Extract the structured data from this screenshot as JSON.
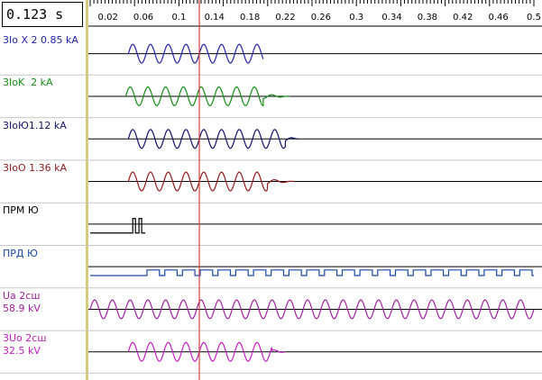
{
  "time_readout": "0.123 s",
  "colors": {
    "divider": "#d4cc7a",
    "cursor": "#d04040",
    "channel_separator": "#c8c8c8",
    "baseline": "#000000"
  },
  "chart_data": {
    "type": "line",
    "title": "",
    "xlabel": "",
    "ylabel": "",
    "xlim": [
      0.0,
      0.5
    ],
    "x_ticks": [
      "0.02",
      "0.06",
      "0.1",
      "0.14",
      "0.18",
      "0.22",
      "0.26",
      "0.3",
      "0.34",
      "0.38",
      "0.42",
      "0.46",
      "0.5"
    ],
    "x_tick_values": [
      0.02,
      0.06,
      0.1,
      0.14,
      0.18,
      0.22,
      0.26,
      0.3,
      0.34,
      0.38,
      0.42,
      0.46,
      0.5
    ],
    "cursor_time": 0.123,
    "grid": false,
    "series": [
      {
        "label_lines": [
          "3Io X 2 0.85 kA"
        ],
        "color": "#2323a8",
        "kind": "sine",
        "t_start": 0.043,
        "t_end": 0.195,
        "amplitude": 0.85,
        "scale_max": 0.85,
        "freq": 50,
        "tail": 0.0,
        "offset": 0
      },
      {
        "label_lines": [
          "3IoK  2 kA"
        ],
        "color": "#148c14",
        "kind": "sine",
        "t_start": 0.04,
        "t_end": 0.195,
        "amplitude": 2.0,
        "scale_max": 2.0,
        "freq": 50,
        "tail": 0.03,
        "offset": 0
      },
      {
        "label_lines": [
          "3IoЮ1.12 kA"
        ],
        "color": "#10106a",
        "kind": "sine",
        "t_start": 0.043,
        "t_end": 0.22,
        "amplitude": 1.12,
        "scale_max": 1.12,
        "freq": 50,
        "tail": 0.015,
        "offset": 0
      },
      {
        "label_lines": [
          "3IoO 1.36 kA"
        ],
        "color": "#901a1a",
        "kind": "sine",
        "t_start": 0.043,
        "t_end": 0.2,
        "amplitude": 1.36,
        "scale_max": 1.36,
        "freq": 50,
        "tail": 0.03,
        "offset": 0
      },
      {
        "label_lines": [
          "ПРМ Ю"
        ],
        "color": "#000000",
        "kind": "digital",
        "t_start": 0.0,
        "t_end": 0.062,
        "pulses": [
          [
            0.048,
            0.051
          ],
          [
            0.055,
            0.058
          ]
        ],
        "offset": 0
      },
      {
        "label_lines": [
          "ПРД Ю"
        ],
        "color": "#1848a8",
        "kind": "square",
        "t_start": 0.0,
        "t_end": 0.5,
        "period": 0.02,
        "on_start": 0.064,
        "duty": 0.7,
        "offset": 0
      },
      {
        "label_lines": [
          "Ua 2сш",
          "58.9 kV"
        ],
        "color": "#a020a0",
        "kind": "sine",
        "t_start": 0.0,
        "t_end": 0.5,
        "amplitude": 58.9,
        "scale_max": 58.9,
        "freq": 50,
        "tail": 0.0,
        "offset": 0
      },
      {
        "label_lines": [
          "3Uo 2сш",
          "32.5 kV"
        ],
        "color": "#c020c0",
        "kind": "sine",
        "t_start": 0.043,
        "t_end": 0.205,
        "amplitude": 32.5,
        "scale_max": 32.5,
        "freq": 50,
        "tail": 0.015,
        "offset": 0
      }
    ]
  }
}
